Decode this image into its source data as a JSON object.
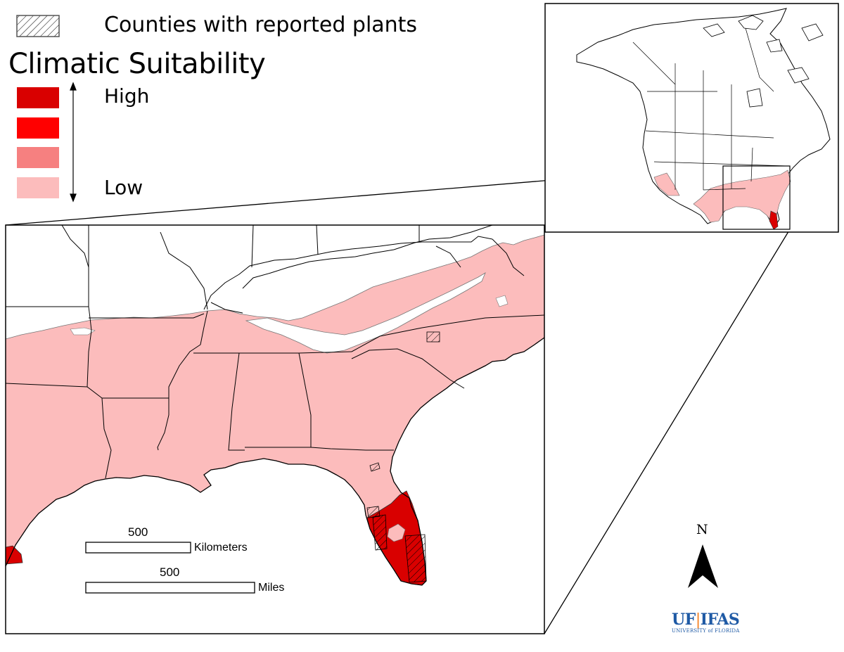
{
  "legend": {
    "hatch_label": "Counties with reported plants",
    "title": "Climatic Suitability",
    "high_label": "High",
    "low_label": "Low",
    "classes": [
      {
        "level": "highest",
        "color": "#d90000"
      },
      {
        "level": "high",
        "color": "#ff0000"
      },
      {
        "level": "medium",
        "color": "#f68080"
      },
      {
        "level": "low",
        "color": "#fcbcbc"
      }
    ]
  },
  "scale_bars": [
    {
      "value": "500",
      "unit": "Kilometers"
    },
    {
      "value": "500",
      "unit": "Miles"
    }
  ],
  "north_arrow": {
    "label": "N"
  },
  "logo": {
    "main_left": "UF",
    "main_right": "IFAS",
    "sub": "UNIVERSITY of FLORIDA"
  },
  "colors": {
    "low_suitability": "#fcbcbc",
    "high_suitability": "#d90000",
    "border": "#000000",
    "logo_blue": "#1f5aa5",
    "logo_orange": "#f48021"
  }
}
